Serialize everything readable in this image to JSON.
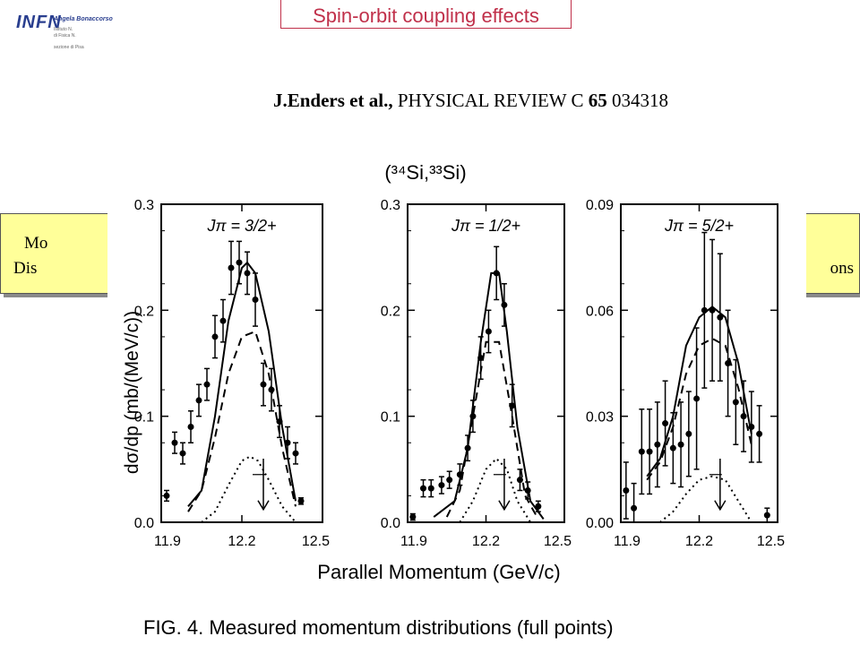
{
  "logo": {
    "letters": "INFN",
    "name": "Angela Bonaccorso",
    "line1": "Istituto N.",
    "line2": "di Fisica N.",
    "line3": "sezione di Pisa"
  },
  "title": "Spin-orbit coupling effects",
  "citation": {
    "authors": "J.Enders et al.,",
    "journal": "PHYSICAL REVIEW C",
    "volume": "65",
    "page": "034318"
  },
  "side_boxes": {
    "left_line1": "Mo",
    "left_line2": "Dis",
    "right_line2": "ons"
  },
  "figure": {
    "reaction": "(³⁴Si,³³Si)",
    "ylabel": "dσ/dp  (mb/(MeV/c))",
    "xlabel": "Parallel Momentum (GeV/c)",
    "caption_fragment": "FIG. 4.  Measured momentum distributions (full points)"
  },
  "chart_data": [
    {
      "type": "scatter",
      "title": "Jπ = 3/2+",
      "xlim": [
        11.9,
        12.5
      ],
      "ylim": [
        0.0,
        0.3
      ],
      "xticks": [
        "11.9",
        "12.2",
        "12.5"
      ],
      "yticks": [
        "0.0",
        "0.1",
        "0.2",
        "0.3"
      ],
      "points": {
        "x": [
          11.92,
          11.95,
          11.98,
          12.01,
          12.04,
          12.07,
          12.1,
          12.13,
          12.16,
          12.19,
          12.22,
          12.25,
          12.28,
          12.31,
          12.34,
          12.37,
          12.4,
          12.42
        ],
        "y": [
          0.025,
          0.075,
          0.065,
          0.09,
          0.115,
          0.13,
          0.175,
          0.19,
          0.24,
          0.245,
          0.235,
          0.21,
          0.13,
          0.125,
          0.095,
          0.075,
          0.065,
          0.02
        ],
        "err": [
          0.005,
          0.01,
          0.01,
          0.015,
          0.015,
          0.015,
          0.02,
          0.02,
          0.025,
          0.02,
          0.02,
          0.025,
          0.02,
          0.02,
          0.015,
          0.015,
          0.01,
          0.003
        ]
      },
      "lines": [
        {
          "name": "solid",
          "x": [
            12.0,
            12.05,
            12.1,
            12.15,
            12.2,
            12.22,
            12.25,
            12.3,
            12.35,
            12.4
          ],
          "y": [
            0.015,
            0.03,
            0.1,
            0.19,
            0.24,
            0.245,
            0.235,
            0.18,
            0.09,
            0.02
          ]
        },
        {
          "name": "dashed",
          "x": [
            12.0,
            12.05,
            12.1,
            12.15,
            12.2,
            12.25,
            12.3,
            12.35,
            12.4
          ],
          "y": [
            0.01,
            0.03,
            0.08,
            0.14,
            0.175,
            0.18,
            0.14,
            0.07,
            0.015
          ]
        },
        {
          "name": "dotted",
          "x": [
            12.05,
            12.1,
            12.15,
            12.2,
            12.23,
            12.26,
            12.3,
            12.35,
            12.4
          ],
          "y": [
            0.0,
            0.01,
            0.035,
            0.058,
            0.062,
            0.058,
            0.04,
            0.015,
            0.0
          ]
        }
      ],
      "arrow_x": 12.28
    },
    {
      "type": "scatter",
      "title": "Jπ = 1/2+",
      "xlim": [
        11.9,
        12.5
      ],
      "ylim": [
        0.0,
        0.3
      ],
      "xticks": [
        "11.9",
        "12.2",
        "12.5"
      ],
      "yticks": [
        "0.0",
        "0.1",
        "0.2",
        "0.3"
      ],
      "points": {
        "x": [
          11.92,
          11.96,
          11.99,
          12.03,
          12.06,
          12.1,
          12.13,
          12.15,
          12.18,
          12.21,
          12.24,
          12.27,
          12.3,
          12.33,
          12.36,
          12.4
        ],
        "y": [
          0.005,
          0.032,
          0.032,
          0.035,
          0.04,
          0.045,
          0.07,
          0.1,
          0.155,
          0.18,
          0.235,
          0.205,
          0.11,
          0.04,
          0.03,
          0.015
        ],
        "err": [
          0.003,
          0.008,
          0.008,
          0.008,
          0.008,
          0.01,
          0.012,
          0.015,
          0.02,
          0.02,
          0.025,
          0.02,
          0.02,
          0.01,
          0.008,
          0.005
        ]
      },
      "lines": [
        {
          "name": "solid",
          "x": [
            12.0,
            12.08,
            12.13,
            12.18,
            12.22,
            12.25,
            12.28,
            12.32,
            12.37,
            12.42
          ],
          "y": [
            0.005,
            0.02,
            0.07,
            0.17,
            0.235,
            0.235,
            0.18,
            0.09,
            0.02,
            0.003
          ]
        },
        {
          "name": "dashed",
          "x": [
            12.05,
            12.1,
            12.15,
            12.2,
            12.25,
            12.3,
            12.35,
            12.4
          ],
          "y": [
            0.005,
            0.03,
            0.1,
            0.17,
            0.17,
            0.1,
            0.025,
            0.003
          ]
        },
        {
          "name": "dotted",
          "x": [
            12.1,
            12.15,
            12.2,
            12.24,
            12.28,
            12.32,
            12.37
          ],
          "y": [
            0.0,
            0.02,
            0.05,
            0.06,
            0.05,
            0.02,
            0.0
          ]
        }
      ],
      "arrow_x": 12.27
    },
    {
      "type": "scatter",
      "title": "Jπ = 5/2+",
      "xlim": [
        11.9,
        12.5
      ],
      "ylim": [
        0.0,
        0.09
      ],
      "xticks": [
        "11.9",
        "12.2",
        "12.5"
      ],
      "yticks": [
        "0.00",
        "0.03",
        "0.06",
        "0.09"
      ],
      "points": {
        "x": [
          11.92,
          11.95,
          11.98,
          12.01,
          12.04,
          12.07,
          12.1,
          12.13,
          12.16,
          12.19,
          12.22,
          12.25,
          12.28,
          12.31,
          12.34,
          12.37,
          12.4,
          12.43,
          12.46
        ],
        "y": [
          0.009,
          0.004,
          0.02,
          0.02,
          0.022,
          0.028,
          0.021,
          0.022,
          0.025,
          0.035,
          0.06,
          0.06,
          0.058,
          0.045,
          0.034,
          0.03,
          0.027,
          0.025,
          0.002
        ],
        "err": [
          0.008,
          0.007,
          0.012,
          0.012,
          0.012,
          0.012,
          0.01,
          0.012,
          0.012,
          0.02,
          0.022,
          0.02,
          0.018,
          0.015,
          0.012,
          0.01,
          0.01,
          0.008,
          0.002
        ]
      },
      "lines": [
        {
          "name": "solid",
          "x": [
            12.0,
            12.05,
            12.1,
            12.15,
            12.2,
            12.25,
            12.3,
            12.35,
            12.4
          ],
          "y": [
            0.013,
            0.018,
            0.03,
            0.05,
            0.058,
            0.061,
            0.058,
            0.045,
            0.025
          ]
        },
        {
          "name": "dashed",
          "x": [
            12.0,
            12.05,
            12.1,
            12.15,
            12.2,
            12.25,
            12.3,
            12.35,
            12.4
          ],
          "y": [
            0.012,
            0.017,
            0.027,
            0.042,
            0.05,
            0.052,
            0.05,
            0.038,
            0.022
          ]
        },
        {
          "name": "dotted",
          "x": [
            12.05,
            12.1,
            12.15,
            12.2,
            12.25,
            12.3,
            12.35,
            12.4
          ],
          "y": [
            0.0,
            0.003,
            0.008,
            0.012,
            0.013,
            0.012,
            0.006,
            0.0
          ]
        }
      ],
      "arrow_x": 12.28
    }
  ]
}
